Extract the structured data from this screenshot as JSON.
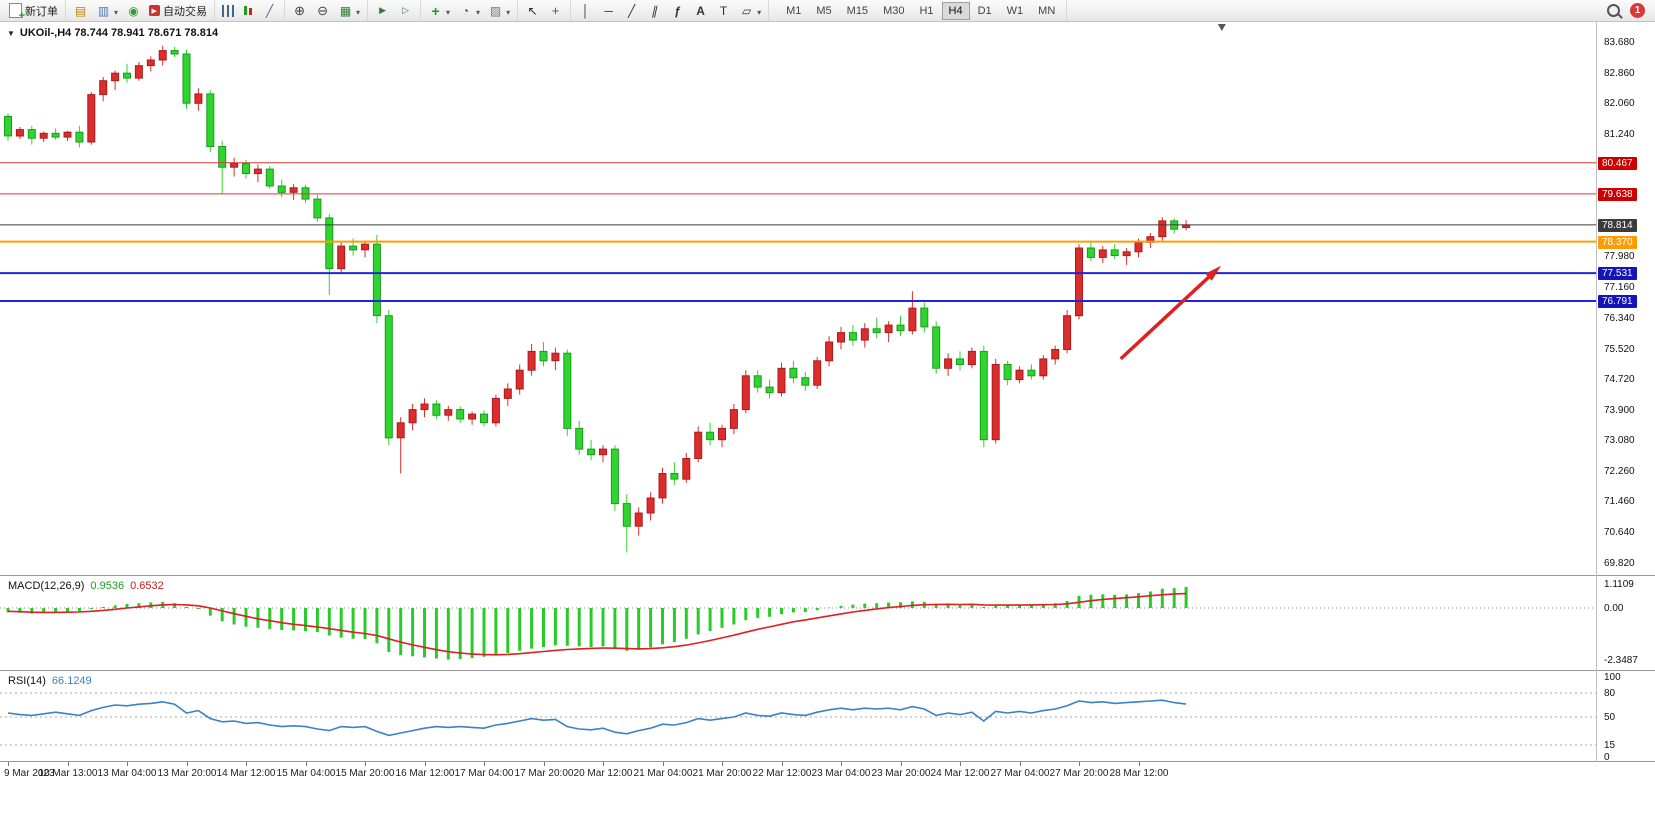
{
  "toolbar": {
    "groups": [
      {
        "items": [
          {
            "name": "new-order-button",
            "icon": "new-order-icon",
            "label": "新订单"
          }
        ]
      },
      {
        "items": [
          {
            "name": "chart-window-button",
            "icon": "chart-window-icon"
          },
          {
            "name": "profiles-button",
            "icon": "profiles-icon",
            "dd": true
          },
          {
            "name": "market-watch-button",
            "icon": "market-watch-icon"
          },
          {
            "name": "autotrading-button",
            "icon": "autotrading-icon",
            "label": "自动交易"
          }
        ]
      },
      {
        "items": [
          {
            "name": "bar-chart-button",
            "icon": "bar-chart-icon"
          },
          {
            "name": "candlestick-button",
            "icon": "candlestick-icon"
          },
          {
            "name": "line-chart-button",
            "icon": "line-chart-icon"
          }
        ]
      },
      {
        "items": [
          {
            "name": "zoom-in-button",
            "icon": "zoom-in-icon"
          },
          {
            "name": "zoom-out-button",
            "icon": "zoom-out-icon"
          },
          {
            "name": "tile-windows-button",
            "icon": "tile-windows-icon",
            "dd": true
          }
        ]
      },
      {
        "items": [
          {
            "name": "auto-scroll-button",
            "icon": "auto-scroll-icon"
          },
          {
            "name": "chart-shift-button",
            "icon": "chart-shift-icon"
          }
        ]
      },
      {
        "items": [
          {
            "name": "indicators-button",
            "icon": "indicators-icon",
            "dd": true
          },
          {
            "name": "periods-button",
            "icon": "periods-icon",
            "dd": true
          },
          {
            "name": "templates-button",
            "icon": "templates-icon",
            "dd": true
          }
        ]
      },
      {
        "items": [
          {
            "name": "cursor-button",
            "icon": "cursor-icon"
          },
          {
            "name": "crosshair-button",
            "icon": "crosshair-icon"
          }
        ]
      },
      {
        "items": [
          {
            "name": "vertical-line-button",
            "icon": "vertical-line-icon"
          },
          {
            "name": "horizontal-line-button",
            "icon": "horizontal-line-icon"
          },
          {
            "name": "trendline-button",
            "icon": "trendline-icon"
          },
          {
            "name": "channel-button",
            "icon": "channel-icon"
          },
          {
            "name": "fibonacci-button",
            "icon": "fibonacci-icon"
          },
          {
            "name": "text-button",
            "icon": "text-icon"
          },
          {
            "name": "label-button",
            "icon": "label-icon"
          },
          {
            "name": "shapes-button",
            "icon": "shapes-icon",
            "dd": true
          }
        ]
      }
    ],
    "timeframes": [
      {
        "name": "timeframe-m1-button",
        "label": "M1"
      },
      {
        "name": "timeframe-m5-button",
        "label": "M5"
      },
      {
        "name": "timeframe-m15-button",
        "label": "M15"
      },
      {
        "name": "timeframe-m30-button",
        "label": "M30"
      },
      {
        "name": "timeframe-h1-button",
        "label": "H1"
      },
      {
        "name": "timeframe-h4-button",
        "label": "H4",
        "active": true
      },
      {
        "name": "timeframe-d1-button",
        "label": "D1"
      },
      {
        "name": "timeframe-w1-button",
        "label": "W1"
      },
      {
        "name": "timeframe-mn-button",
        "label": "MN"
      }
    ],
    "right": {
      "search_name": "search-button",
      "badge": "1"
    }
  },
  "chart": {
    "marker_glyph": "▼",
    "header": "UKOil-,H4  78.744 78.941 78.671 78.814"
  },
  "chart_data": {
    "type": "candlestick",
    "symbol": "UKOil-",
    "timeframe": "H4",
    "ohlc": {
      "open": "78.744",
      "high": "78.941",
      "low": "78.671",
      "close": "78.814"
    },
    "price_range": {
      "min": 69.82,
      "max": 83.68
    },
    "price_axis_labels": [
      "83.680",
      "82.860",
      "82.060",
      "81.240",
      "77.980",
      "77.160",
      "76.340",
      "75.520",
      "74.720",
      "73.900",
      "73.080",
      "72.260",
      "71.460",
      "70.640",
      "69.820"
    ],
    "hlines": [
      {
        "label": "80.467",
        "price": 80.467,
        "color": "#e63434",
        "tag_bg": "#cc0000",
        "width": 1
      },
      {
        "label": "79.638",
        "price": 79.638,
        "color": "#e63434",
        "tag_bg": "#cc0000",
        "width": 1
      },
      {
        "label": "78.814",
        "price": 78.814,
        "color": "#3c3c3c",
        "tag_bg": "#3c3c3c",
        "width": 1
      },
      {
        "label": "78.370",
        "price": 78.37,
        "color": "#ff9c00",
        "tag_bg": "#ff9c00",
        "width": 2
      },
      {
        "label": "77.531",
        "price": 77.531,
        "color": "#2222dd",
        "tag_bg": "#1414bb",
        "width": 2
      },
      {
        "label": "76.791",
        "price": 76.791,
        "color": "#2222dd",
        "tag_bg": "#1414bb",
        "width": 2
      }
    ],
    "colors": {
      "up": "#dd2c2c",
      "down": "#2ed52e",
      "up_border": "#a81d1d",
      "down_border": "#1d9b1d",
      "macd_hist": "#28cc28",
      "macd_signal": "#dd2020",
      "rsi_line": "#3b82c4",
      "arrow": "#dd2020"
    },
    "candles": [
      [
        81.7,
        81.78,
        81.05,
        81.18
      ],
      [
        81.18,
        81.42,
        81.1,
        81.35
      ],
      [
        81.35,
        81.45,
        80.95,
        81.12
      ],
      [
        81.12,
        81.3,
        81.02,
        81.25
      ],
      [
        81.25,
        81.38,
        81.08,
        81.15
      ],
      [
        81.15,
        81.32,
        81.05,
        81.28
      ],
      [
        81.28,
        81.45,
        80.88,
        81.02
      ],
      [
        81.02,
        82.35,
        80.95,
        82.28
      ],
      [
        82.28,
        82.75,
        82.1,
        82.65
      ],
      [
        82.65,
        82.92,
        82.4,
        82.85
      ],
      [
        82.85,
        83.1,
        82.6,
        82.72
      ],
      [
        82.72,
        83.15,
        82.65,
        83.05
      ],
      [
        83.05,
        83.3,
        82.9,
        83.2
      ],
      [
        83.2,
        83.58,
        83.05,
        83.45
      ],
      [
        83.45,
        83.55,
        83.28,
        83.36
      ],
      [
        83.36,
        83.48,
        81.9,
        82.05
      ],
      [
        82.05,
        82.45,
        81.85,
        82.3
      ],
      [
        82.3,
        82.4,
        80.75,
        80.9
      ],
      [
        80.9,
        81.05,
        79.65,
        80.35
      ],
      [
        80.35,
        80.6,
        80.1,
        80.45
      ],
      [
        80.45,
        80.55,
        80.05,
        80.18
      ],
      [
        80.18,
        80.42,
        79.95,
        80.3
      ],
      [
        80.3,
        80.38,
        79.78,
        79.85
      ],
      [
        79.85,
        80.02,
        79.55,
        79.68
      ],
      [
        79.68,
        79.9,
        79.48,
        79.8
      ],
      [
        79.8,
        79.88,
        79.4,
        79.5
      ],
      [
        79.5,
        79.62,
        78.9,
        79.0
      ],
      [
        79.0,
        79.1,
        76.95,
        77.65
      ],
      [
        77.65,
        78.35,
        77.55,
        78.25
      ],
      [
        78.25,
        78.45,
        78.0,
        78.15
      ],
      [
        78.15,
        78.4,
        77.95,
        78.3
      ],
      [
        78.3,
        78.55,
        76.2,
        76.4
      ],
      [
        76.4,
        76.55,
        72.95,
        73.15
      ],
      [
        73.15,
        73.7,
        72.2,
        73.55
      ],
      [
        73.55,
        74.05,
        73.35,
        73.9
      ],
      [
        73.9,
        74.2,
        73.7,
        74.05
      ],
      [
        74.05,
        74.15,
        73.65,
        73.75
      ],
      [
        73.75,
        74.0,
        73.6,
        73.9
      ],
      [
        73.9,
        73.98,
        73.55,
        73.65
      ],
      [
        73.65,
        73.85,
        73.5,
        73.78
      ],
      [
        73.78,
        73.88,
        73.45,
        73.55
      ],
      [
        73.55,
        74.3,
        73.45,
        74.2
      ],
      [
        74.2,
        74.6,
        74.0,
        74.45
      ],
      [
        74.45,
        75.1,
        74.3,
        74.95
      ],
      [
        74.95,
        75.65,
        74.8,
        75.45
      ],
      [
        75.45,
        75.7,
        75.05,
        75.2
      ],
      [
        75.2,
        75.55,
        74.95,
        75.4
      ],
      [
        75.4,
        75.5,
        73.2,
        73.4
      ],
      [
        73.4,
        73.6,
        72.7,
        72.85
      ],
      [
        72.85,
        73.1,
        72.55,
        72.7
      ],
      [
        72.7,
        72.95,
        72.5,
        72.85
      ],
      [
        72.85,
        72.95,
        71.2,
        71.4
      ],
      [
        71.4,
        71.65,
        70.1,
        70.8
      ],
      [
        70.8,
        71.3,
        70.55,
        71.15
      ],
      [
        71.15,
        71.7,
        70.95,
        71.55
      ],
      [
        71.55,
        72.35,
        71.4,
        72.2
      ],
      [
        72.2,
        72.5,
        71.9,
        72.05
      ],
      [
        72.05,
        72.75,
        71.95,
        72.6
      ],
      [
        72.6,
        73.45,
        72.5,
        73.3
      ],
      [
        73.3,
        73.55,
        72.95,
        73.1
      ],
      [
        73.1,
        73.5,
        72.9,
        73.4
      ],
      [
        73.4,
        74.05,
        73.25,
        73.9
      ],
      [
        73.9,
        74.95,
        73.8,
        74.8
      ],
      [
        74.8,
        74.95,
        74.35,
        74.5
      ],
      [
        74.5,
        74.7,
        74.2,
        74.35
      ],
      [
        74.35,
        75.15,
        74.25,
        75.0
      ],
      [
        75.0,
        75.2,
        74.6,
        74.75
      ],
      [
        74.75,
        74.9,
        74.4,
        74.55
      ],
      [
        74.55,
        75.3,
        74.45,
        75.2
      ],
      [
        75.2,
        75.85,
        75.05,
        75.7
      ],
      [
        75.7,
        76.1,
        75.5,
        75.95
      ],
      [
        75.95,
        76.15,
        75.6,
        75.75
      ],
      [
        75.75,
        76.2,
        75.55,
        76.05
      ],
      [
        76.05,
        76.35,
        75.8,
        75.95
      ],
      [
        75.95,
        76.25,
        75.7,
        76.15
      ],
      [
        76.15,
        76.4,
        75.85,
        76.0
      ],
      [
        76.0,
        77.05,
        75.9,
        76.6
      ],
      [
        76.6,
        76.75,
        75.95,
        76.1
      ],
      [
        76.1,
        76.25,
        74.85,
        75.0
      ],
      [
        75.0,
        75.4,
        74.8,
        75.25
      ],
      [
        75.25,
        75.45,
        74.95,
        75.1
      ],
      [
        75.1,
        75.55,
        75.0,
        75.45
      ],
      [
        75.45,
        75.6,
        72.9,
        73.1
      ],
      [
        73.1,
        75.25,
        73.0,
        75.1
      ],
      [
        75.1,
        75.2,
        74.55,
        74.7
      ],
      [
        74.7,
        75.05,
        74.6,
        74.95
      ],
      [
        74.95,
        75.1,
        74.7,
        74.8
      ],
      [
        74.8,
        75.35,
        74.7,
        75.25
      ],
      [
        75.25,
        75.6,
        75.1,
        75.5
      ],
      [
        75.5,
        76.55,
        75.4,
        76.4
      ],
      [
        76.4,
        78.3,
        76.3,
        78.2
      ],
      [
        78.2,
        78.4,
        77.85,
        77.95
      ],
      [
        77.95,
        78.25,
        77.8,
        78.15
      ],
      [
        78.15,
        78.3,
        77.9,
        78.0
      ],
      [
        78.0,
        78.2,
        77.75,
        78.1
      ],
      [
        78.1,
        78.45,
        77.95,
        78.35
      ],
      [
        78.35,
        78.6,
        78.2,
        78.5
      ],
      [
        78.5,
        79.02,
        78.4,
        78.92
      ],
      [
        78.92,
        78.99,
        78.58,
        78.7
      ],
      [
        78.744,
        78.941,
        78.671,
        78.814
      ]
    ],
    "time_labels": [
      {
        "bar": 0,
        "text": "9 Mar 2023"
      },
      {
        "bar": 5,
        "text": "10 Mar 13:00"
      },
      {
        "bar": 10,
        "text": "13 Mar 04:00"
      },
      {
        "bar": 15,
        "text": "13 Mar 20:00"
      },
      {
        "bar": 20,
        "text": "14 Mar 12:00"
      },
      {
        "bar": 25,
        "text": "15 Mar 04:00"
      },
      {
        "bar": 30,
        "text": "15 Mar 20:00"
      },
      {
        "bar": 35,
        "text": "16 Mar 12:00"
      },
      {
        "bar": 40,
        "text": "17 Mar 04:00"
      },
      {
        "bar": 45,
        "text": "17 Mar 20:00"
      },
      {
        "bar": 50,
        "text": "20 Mar 12:00"
      },
      {
        "bar": 55,
        "text": "21 Mar 04:00"
      },
      {
        "bar": 60,
        "text": "21 Mar 20:00"
      },
      {
        "bar": 65,
        "text": "22 Mar 12:00"
      },
      {
        "bar": 70,
        "text": "23 Mar 04:00"
      },
      {
        "bar": 75,
        "text": "23 Mar 20:00"
      },
      {
        "bar": 80,
        "text": "24 Mar 12:00"
      },
      {
        "bar": 85,
        "text": "27 Mar 04:00"
      },
      {
        "bar": 90,
        "text": "27 Mar 20:00"
      },
      {
        "bar": 95,
        "text": "28 Mar 12:00"
      }
    ],
    "macd": {
      "name": "MACD(12,26,9)",
      "main_value": "0.9536",
      "signal_value": "0.6532",
      "axis_labels": [
        "1.1109",
        "0.00",
        "-2.3487"
      ],
      "axis_values": [
        1.1109,
        0,
        -2.3487
      ],
      "hist": [
        -0.2,
        -0.22,
        -0.25,
        -0.22,
        -0.2,
        -0.18,
        -0.15,
        -0.05,
        0.05,
        0.12,
        0.18,
        0.22,
        0.25,
        0.28,
        0.22,
        0.05,
        -0.05,
        -0.35,
        -0.6,
        -0.75,
        -0.85,
        -0.9,
        -0.95,
        -1.0,
        -1.02,
        -1.05,
        -1.1,
        -1.25,
        -1.35,
        -1.4,
        -1.42,
        -1.6,
        -2.0,
        -2.15,
        -2.2,
        -2.25,
        -2.3,
        -2.35,
        -2.32,
        -2.28,
        -2.22,
        -2.15,
        -2.05,
        -1.95,
        -1.85,
        -1.78,
        -1.7,
        -1.72,
        -1.75,
        -1.78,
        -1.75,
        -1.85,
        -1.95,
        -1.9,
        -1.8,
        -1.65,
        -1.55,
        -1.4,
        -1.2,
        -1.05,
        -0.9,
        -0.75,
        -0.55,
        -0.45,
        -0.4,
        -0.28,
        -0.2,
        -0.18,
        -0.1,
        0.02,
        0.1,
        0.15,
        0.2,
        0.22,
        0.25,
        0.26,
        0.3,
        0.28,
        0.2,
        0.18,
        0.15,
        0.18,
        0.05,
        0.1,
        0.12,
        0.15,
        0.15,
        0.18,
        0.22,
        0.32,
        0.55,
        0.6,
        0.62,
        0.6,
        0.62,
        0.68,
        0.75,
        0.88,
        0.9,
        0.9536
      ],
      "signal": [
        -0.15,
        -0.17,
        -0.19,
        -0.2,
        -0.2,
        -0.19,
        -0.18,
        -0.15,
        -0.11,
        -0.06,
        0.0,
        0.05,
        0.1,
        0.14,
        0.16,
        0.14,
        0.1,
        0.0,
        -0.13,
        -0.26,
        -0.38,
        -0.49,
        -0.58,
        -0.67,
        -0.74,
        -0.8,
        -0.86,
        -0.94,
        -1.02,
        -1.1,
        -1.16,
        -1.25,
        -1.4,
        -1.55,
        -1.68,
        -1.79,
        -1.9,
        -1.99,
        -2.05,
        -2.1,
        -2.12,
        -2.13,
        -2.11,
        -2.08,
        -2.03,
        -1.98,
        -1.93,
        -1.89,
        -1.86,
        -1.84,
        -1.82,
        -1.83,
        -1.85,
        -1.86,
        -1.85,
        -1.81,
        -1.76,
        -1.69,
        -1.59,
        -1.48,
        -1.36,
        -1.24,
        -1.1,
        -0.97,
        -0.86,
        -0.74,
        -0.63,
        -0.54,
        -0.45,
        -0.36,
        -0.27,
        -0.18,
        -0.11,
        -0.04,
        0.02,
        0.07,
        0.12,
        0.15,
        0.16,
        0.17,
        0.16,
        0.17,
        0.14,
        0.13,
        0.13,
        0.13,
        0.14,
        0.15,
        0.16,
        0.19,
        0.26,
        0.33,
        0.39,
        0.43,
        0.47,
        0.51,
        0.56,
        0.6,
        0.64,
        0.6532
      ]
    },
    "rsi": {
      "name": "RSI(14)",
      "value": "66.1249",
      "axis_labels": [
        "100",
        "80",
        "50",
        "15",
        "0"
      ],
      "axis_values": [
        100,
        80,
        50,
        15,
        0
      ],
      "levels": [
        80,
        50,
        15
      ],
      "values": [
        55,
        53,
        52,
        54,
        56,
        54,
        52,
        58,
        62,
        65,
        64,
        66,
        67,
        69,
        66,
        55,
        58,
        48,
        44,
        45,
        42,
        43,
        40,
        38,
        39,
        38,
        35,
        33,
        38,
        37,
        38,
        32,
        27,
        30,
        33,
        36,
        38,
        37,
        38,
        37,
        36,
        40,
        42,
        45,
        48,
        46,
        47,
        38,
        35,
        34,
        36,
        31,
        29,
        33,
        36,
        41,
        40,
        43,
        48,
        46,
        48,
        50,
        55,
        52,
        51,
        55,
        53,
        52,
        56,
        59,
        61,
        59,
        61,
        60,
        61,
        59,
        63,
        60,
        52,
        55,
        53,
        56,
        45,
        57,
        55,
        57,
        55,
        58,
        60,
        64,
        70,
        68,
        69,
        67,
        68,
        69,
        70,
        71,
        68,
        66.1249
      ]
    },
    "arrow": {
      "x1_bar": 93.5,
      "p1": 75.25,
      "x2_bar": 101.5,
      "p2": 77.6
    },
    "shift_marker_bar": 102
  }
}
